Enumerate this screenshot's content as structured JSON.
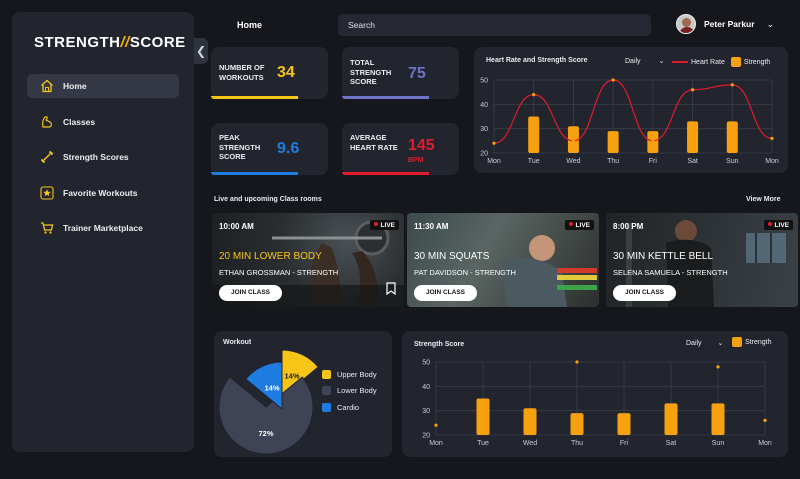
{
  "sidebar": {
    "logo_left": "STRENGTH",
    "logo_slash": "//",
    "logo_right": "SCORE",
    "items": [
      {
        "label": "Home",
        "icon": "home-icon"
      },
      {
        "label": "Classes",
        "icon": "muscle-icon"
      },
      {
        "label": "Strength Scores",
        "icon": "dumbbell-icon"
      },
      {
        "label": "Favorite Workouts",
        "icon": "star-icon"
      },
      {
        "label": "Trainer Marketplace",
        "icon": "cart-icon"
      }
    ]
  },
  "header": {
    "title": "Home",
    "search_placeholder": "Search",
    "user_name": "Peter Parkur"
  },
  "stats": [
    {
      "label": "Number of Workouts",
      "value": "34",
      "color": "#f7c518"
    },
    {
      "label": "Total Strength Score",
      "value": "75",
      "color": "#6f74c9"
    },
    {
      "label": "Peak Strength Score",
      "value": "9.6",
      "color": "#1e7be0"
    },
    {
      "label": "Average Heart Rate",
      "value": "145",
      "sub": "BPM",
      "color": "#e31b2f"
    }
  ],
  "heart_chart": {
    "title": "Heart Rate and Strength Score",
    "period": "Daily",
    "legend_line": "Heart Rate",
    "legend_bar": "Strength"
  },
  "classes_section": {
    "title": "Live and upcoming Class rooms",
    "view_more": "View More",
    "join_label": "JOIN CLASS",
    "live_label": "LIVE",
    "items": [
      {
        "time": "10:00 AM",
        "title": "20 MIN LOWER BODY",
        "coach": "ETHAN GROSSMAN - STRENGTH"
      },
      {
        "time": "11:30 AM",
        "title": "30 MIN SQUATS",
        "coach": "PAT DAVIDSON - STRENGTH"
      },
      {
        "time": "8:00 PM",
        "title": "30 MIN KETTLE BELL",
        "coach": "SELENA SAMUELA - STRENGTH"
      }
    ]
  },
  "workout": {
    "title": "Workout",
    "legend": [
      {
        "label": "Upper Body",
        "color": "#f7c518"
      },
      {
        "label": "Lower Body",
        "color": "#3e4356"
      },
      {
        "label": "Cardio",
        "color": "#1e7be0"
      }
    ]
  },
  "strength_chart": {
    "title": "Strength Score",
    "period": "Daily",
    "legend_bar": "Strength"
  },
  "chart_data": [
    {
      "type": "bar",
      "title": "Heart Rate and Strength Score",
      "categories": [
        "Mon",
        "Tue",
        "Wed",
        "Thu",
        "Fri",
        "Sat",
        "Sun",
        "Mon"
      ],
      "ylim": [
        20,
        50
      ],
      "yticks": [
        20,
        30,
        40,
        50
      ],
      "series": [
        {
          "name": "Strength",
          "kind": "bar",
          "values": [
            null,
            35,
            31,
            29,
            29,
            33,
            33,
            null
          ]
        },
        {
          "name": "Heart Rate",
          "kind": "line",
          "values": [
            24,
            44,
            25,
            50,
            25,
            46,
            48,
            26
          ]
        }
      ]
    },
    {
      "type": "pie",
      "title": "Workout",
      "labels": [
        "Upper Body",
        "Lower Body",
        "Cardio"
      ],
      "values": [
        14,
        72,
        14
      ],
      "value_labels": [
        "14%",
        "72%",
        "14%"
      ]
    },
    {
      "type": "bar",
      "title": "Strength Score",
      "categories": [
        "Mon",
        "Tue",
        "Wed",
        "Thu",
        "Fri",
        "Sat",
        "Sun",
        "Mon"
      ],
      "ylim": [
        20,
        50
      ],
      "yticks": [
        20,
        30,
        40,
        50
      ],
      "series": [
        {
          "name": "Strength",
          "kind": "bar",
          "values": [
            null,
            35,
            31,
            29,
            29,
            33,
            33,
            null
          ]
        },
        {
          "name": "",
          "kind": "dots",
          "values": [
            24,
            null,
            null,
            50,
            null,
            null,
            48,
            26
          ]
        }
      ]
    }
  ]
}
